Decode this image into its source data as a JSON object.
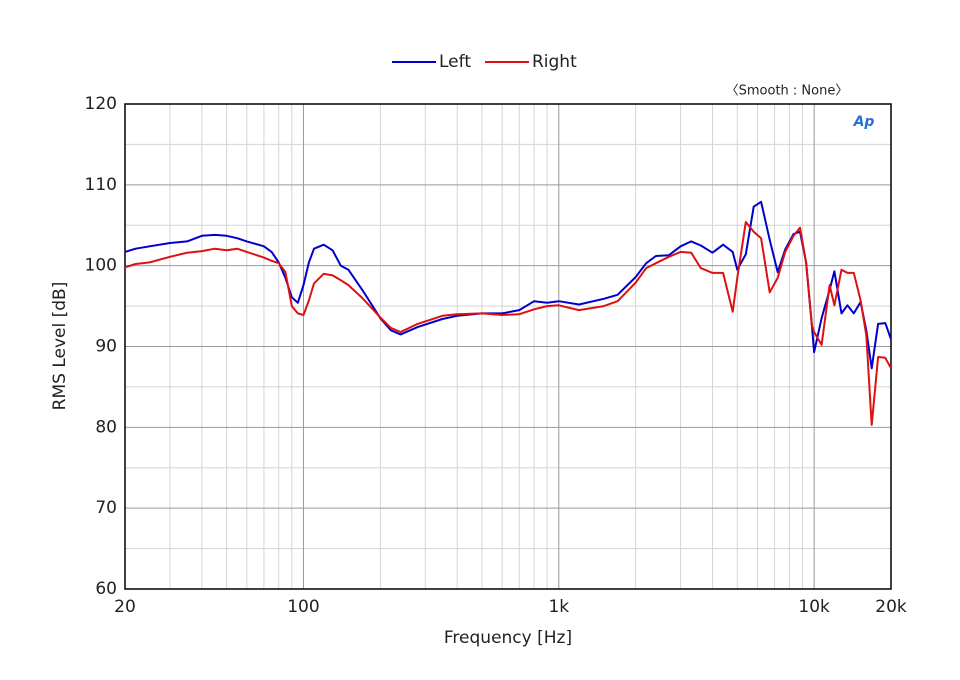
{
  "chart_data": {
    "type": "line",
    "xlabel": "Frequency [Hz]",
    "ylabel": "RMS Level [dB]",
    "annotation": "〈Smooth : None〉",
    "logo": "Ap",
    "xscale": "log",
    "grid": true,
    "legend": "top",
    "xlim": [
      20,
      20000
    ],
    "ylim": [
      60,
      120
    ],
    "xticks": [
      20,
      100,
      {
        "value": 1000,
        "label": "1k"
      },
      {
        "value": 10000,
        "label": "10k"
      },
      {
        "value": 20000,
        "label": "20k"
      }
    ],
    "xminorticks": [
      30,
      40,
      50,
      60,
      70,
      80,
      90,
      200,
      300,
      400,
      500,
      600,
      700,
      800,
      900,
      2000,
      3000,
      4000,
      5000,
      6000,
      7000,
      8000,
      9000
    ],
    "yticks": [
      60,
      70,
      80,
      90,
      100,
      110,
      120
    ],
    "yminorticks": [
      65,
      75,
      85,
      95,
      105,
      115
    ],
    "x": [
      20,
      22,
      25,
      30,
      35,
      40,
      45,
      50,
      55,
      60,
      70,
      75,
      80,
      85,
      90,
      95,
      100,
      105,
      110,
      120,
      130,
      140,
      150,
      170,
      200,
      220,
      240,
      280,
      350,
      400,
      500,
      600,
      700,
      800,
      900,
      1000,
      1200,
      1500,
      1700,
      2000,
      2200,
      2400,
      2700,
      3000,
      3300,
      3600,
      4000,
      4400,
      4800,
      5000,
      5400,
      5800,
      6200,
      6700,
      7200,
      7700,
      8300,
      8800,
      9300,
      9800,
      10000,
      10700,
      11500,
      12000,
      12800,
      13500,
      14300,
      15200,
      16000,
      16800,
      17800,
      19000,
      20000
    ],
    "series": [
      {
        "name": "Left",
        "color": "#0000cc",
        "values": [
          101.7,
          102.1,
          102.4,
          102.8,
          103.0,
          103.7,
          103.8,
          103.7,
          103.4,
          103.0,
          102.4,
          101.7,
          100.4,
          98.5,
          96.1,
          95.4,
          97.6,
          100.4,
          102.1,
          102.6,
          101.9,
          100.0,
          99.5,
          97.0,
          93.5,
          92.0,
          91.5,
          92.4,
          93.4,
          93.8,
          94.1,
          94.1,
          94.5,
          95.6,
          95.4,
          95.6,
          95.2,
          95.9,
          96.4,
          98.6,
          100.3,
          101.2,
          101.3,
          102.4,
          103.0,
          102.5,
          101.6,
          102.6,
          101.7,
          99.5,
          101.4,
          107.3,
          107.9,
          103.2,
          99.2,
          102.0,
          103.9,
          104.2,
          100.4,
          92.6,
          89.3,
          93.5,
          97.0,
          99.3,
          94.1,
          95.1,
          94.1,
          95.5,
          92.0,
          87.3,
          92.8,
          92.9,
          90.9
        ]
      },
      {
        "name": "Right",
        "color": "#dd1111",
        "values": [
          99.8,
          100.2,
          100.4,
          101.1,
          101.6,
          101.8,
          102.1,
          101.9,
          102.1,
          101.7,
          101.0,
          100.6,
          100.3,
          99.2,
          95.0,
          94.1,
          93.9,
          95.7,
          97.8,
          99.0,
          98.8,
          98.2,
          97.6,
          96.0,
          93.6,
          92.3,
          91.8,
          92.8,
          93.8,
          94.0,
          94.1,
          93.9,
          94.0,
          94.6,
          95.0,
          95.1,
          94.5,
          95.0,
          95.6,
          97.9,
          99.7,
          100.3,
          101.1,
          101.7,
          101.6,
          99.7,
          99.1,
          99.1,
          94.3,
          98.5,
          105.4,
          104.2,
          103.4,
          96.7,
          98.5,
          101.7,
          103.7,
          104.7,
          100.4,
          92.6,
          91.8,
          90.2,
          97.6,
          95.1,
          99.5,
          99.1,
          99.1,
          95.7,
          91.4,
          80.3,
          88.7,
          88.6,
          87.3
        ]
      }
    ]
  }
}
